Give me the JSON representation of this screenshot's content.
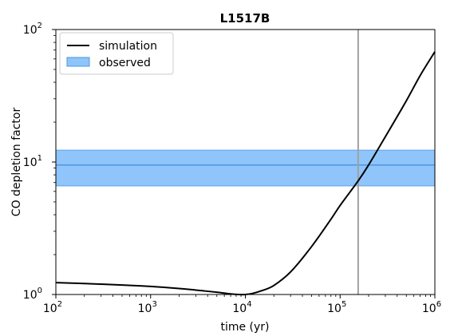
{
  "chart_data": {
    "type": "line",
    "title": "L1517B",
    "xlabel": "time (yr)",
    "ylabel": "CO depletion factor",
    "xscale": "log",
    "yscale": "log",
    "xlim": [
      100,
      1000000
    ],
    "ylim": [
      1,
      100
    ],
    "x_ticks": [
      {
        "base": "10",
        "exp": "2"
      },
      {
        "base": "10",
        "exp": "3"
      },
      {
        "base": "10",
        "exp": "4"
      },
      {
        "base": "10",
        "exp": "5"
      },
      {
        "base": "10",
        "exp": "6"
      }
    ],
    "y_ticks": [
      {
        "base": "10",
        "exp": "0"
      },
      {
        "base": "10",
        "exp": "1"
      },
      {
        "base": "10",
        "exp": "2"
      }
    ],
    "legend_position": "top-left",
    "grid": false,
    "series": [
      {
        "name": "simulation",
        "color": "#000000",
        "points": [
          [
            100,
            1.23
          ],
          [
            200,
            1.21
          ],
          [
            500,
            1.18
          ],
          [
            1000,
            1.15
          ],
          [
            2000,
            1.11
          ],
          [
            3000,
            1.08
          ],
          [
            5000,
            1.04
          ],
          [
            7000,
            1.01
          ],
          [
            8500,
            1.0
          ],
          [
            10000,
            1.0
          ],
          [
            12000,
            1.02
          ],
          [
            15000,
            1.07
          ],
          [
            20000,
            1.17
          ],
          [
            30000,
            1.48
          ],
          [
            50000,
            2.3
          ],
          [
            80000,
            3.7
          ],
          [
            100000,
            4.7
          ],
          [
            155000,
            7.2
          ],
          [
            200000,
            9.5
          ],
          [
            300000,
            15.5
          ],
          [
            500000,
            29
          ],
          [
            700000,
            45
          ],
          [
            1000000,
            68
          ]
        ]
      }
    ],
    "observed": {
      "name": "observed",
      "value": 9.5,
      "lower": 6.6,
      "upper": 12.3,
      "fill_color": "#8fc5fb",
      "line_color": "#4f95de"
    },
    "vertical_line": {
      "x": 155000,
      "color": "#a0a0a0"
    }
  }
}
